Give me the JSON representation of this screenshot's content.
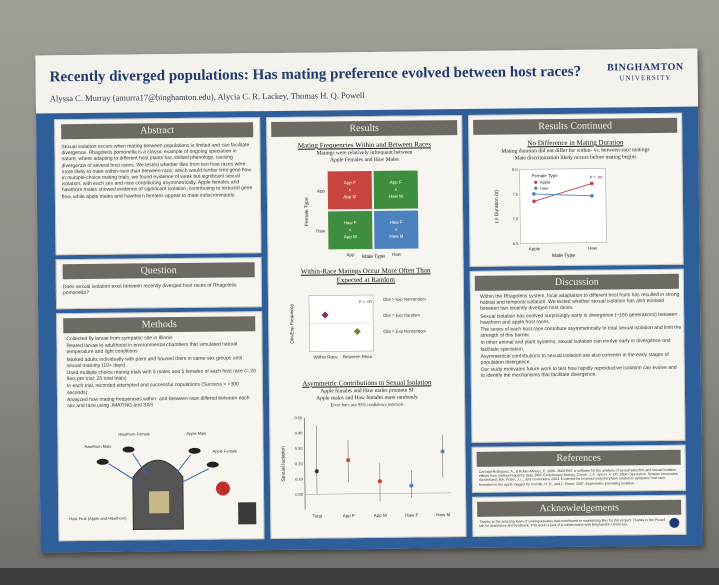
{
  "poster": {
    "title": "Recently diverged populations: Has mating preference evolved between host races?",
    "authors": "Alyssa C. Murray (amurra17@binghamton.edu), Alycia C. R. Lackey, Thomas H. Q. Powell",
    "logo_main": "BINGHAMTON",
    "logo_sub": "UNIVERSITY"
  },
  "sections": {
    "abstract": {
      "heading": "Abstract",
      "text": "Sexual isolation occurs when mating between populations is limited and can facilitate divergence. Rhagoletis pomonella is a classic example of ongoing speciation in nature, where adapting to different host plants has shifted phenology, causing divergence of several host races. We tested whether flies from two host races were more likely to mate within-race than between-race, which would further limit gene flow. In multiple-choice mating trials, we found evidence of weak but significant sexual isolation, with each sex and race contributing asymmetrically. Apple females and hawthorn males showed evidence of significant isolation, contributing to reduced gene flow, while apple males and hawthorn females appear to mate indiscriminately."
    },
    "question": {
      "heading": "Question",
      "text": "Does sexual isolation exist between recently diverged host races of Rhagoletis pomonella?"
    },
    "methods": {
      "heading": "Methods",
      "bullets": [
        "Collected fly larvae from sympatric site in Illinois",
        "Reared larvae to adulthood in environmental chambers that simulated natural temperature and light conditions",
        "Marked adults individually with paint and housed them in same-sex groups until sexual maturity (10+ days)",
        "Used multiple choice mating trials with 5 males and 5 females of each host race (= 20 flies per trial; 25 total trials)",
        "In each trial, recorded attempted and successful copulations (Success = >300 seconds)",
        "Analyzed how mating frequencies within- and between-race differed between each sex and race using JMATING and SAS"
      ],
      "figure_labels": {
        "hawthorn_male": "Hawthorn Male",
        "hawthorn_female": "Hawthorn Female",
        "apple_male": "Apple Male",
        "apple_female": "Apple Female",
        "host_fruit": "Host Fruit (Apple and Hawthorn)"
      }
    },
    "results": {
      "heading": "Results",
      "fig1": {
        "title": "Mating Frequencies Within and Between Races",
        "caption1": "Matings were relatively infrequent between",
        "caption2": "Apple Females and Haw Males",
        "ylabel": "Female Type",
        "xlabel": "Male Type",
        "row_labels": [
          "App",
          "Haw"
        ],
        "col_labels": [
          "App",
          "Haw"
        ],
        "cells": [
          {
            "line1": "App F",
            "line2": "x",
            "line3": "App M",
            "color": "#c8453f"
          },
          {
            "line1": "App F",
            "line2": "x",
            "line3": "Haw M",
            "color": "#3f8d3e"
          },
          {
            "line1": "Haw F",
            "line2": "x",
            "line3": "App M",
            "color": "#3f8d3e"
          },
          {
            "line1": "Haw F",
            "line2": "x",
            "line3": "Haw M",
            "color": "#4d82c0"
          }
        ]
      },
      "fig2": {
        "title": "Within-Race Matings Occur More Often Than",
        "title2": "Expected at Random",
        "ylabel": "Obs/Exp Frequency",
        "stats": "P = .00",
        "legend": [
          "Obs > Exp Nonrandom",
          "Obs = Exp Random",
          "Obs < Exp Nonrandom"
        ],
        "x_labels": [
          "Within Race",
          "Between Race"
        ]
      },
      "fig3": {
        "title": "Asymmetric Contributions to Sexual Isolation",
        "caption1": "Apple females and Haw males promote SI",
        "caption2": "Apple males and Haw females mate randomly",
        "caption3": "Error bars are 95% confidence intervals",
        "ylabel": "Sexual Isolation",
        "x_labels": [
          "Total",
          "App F",
          "App M",
          "Haw F",
          "Haw M"
        ]
      }
    },
    "results_cont": {
      "heading": "Results Continued",
      "sub_title": "No Difference in Mating Duration",
      "caption1": "Mating duration did not differ for within- vs. between-race matings",
      "caption2": "Mate discrimination likely occurs before mating begins",
      "ylabel": "Ln Duration (s)",
      "xlabel": "Male Type",
      "legend_title": "Female Type",
      "legend": [
        "Apple",
        "Haw"
      ],
      "x_labels": [
        "Apple",
        "Haw"
      ],
      "stats": "P = .00"
    },
    "discussion": {
      "heading": "Discussion",
      "bullets": [
        "Within the Rhagoletis system, local adaptation to different host fruits has resulted in strong habitat and temporal isolation. We tested whether sexual isolation has also evolved between two recently diverged host races.",
        "Sexual isolation has evolved surprisingly early in divergence (~160 generations) between hawthorn and apple host races.",
        "The sexes of each host race contribute asymmetrically to total sexual isolation and limit the strength of this barrier.",
        "In other animal and plant systems, sexual isolation can evolve early in divergence and facilitate speciation.",
        "Asymmetrical contributions to sexual isolation are also common in the early stages of population divergence.",
        "Our study motivates future work to test how rapidly reproductive isolation can evolve and to identify the mechanisms that facilitate divergence."
      ]
    },
    "references": {
      "heading": "References",
      "text": "Carvajal-Rodriguez, A., & Rolan-Alvarez, E. 2006. JMATING: a software for the analysis of sexual selection and sexual isolation effects from mating frequency data. BMC Evolutionary Biology. Coyne, J. A., and H. A. Orr. 2004. Speciation. Sinauer Associates, Sunderland, MA. Feder, J. L., and co-workers. 2003. Evidence for inversion polymorphism related to sympatric host race formation in the apple maggot fly. Rundle, H. D., and L. Rowe. 2007. Asymmetric premating isolation."
    },
    "acknowledgements": {
      "heading": "Acknowledgements",
      "text": "Thanks to the amazing team of undergraduates that contributed to maintaining flies for this project. Thanks to the Powell lab for assistance and feedback. This work is part of a collaboration with Binghamton University."
    }
  },
  "chart_data": [
    {
      "type": "line",
      "title": "No Difference in Mating Duration",
      "xlabel": "Male Type",
      "ylabel": "Ln Duration (s)",
      "categories": [
        "Apple",
        "Haw"
      ],
      "ylim": [
        6.5,
        8.0
      ],
      "series": [
        {
          "name": "Apple",
          "values": [
            7.35,
            7.7
          ],
          "color": "#c8453f"
        },
        {
          "name": "Haw",
          "values": [
            7.5,
            7.45
          ],
          "color": "#4d82c0"
        }
      ]
    },
    {
      "type": "scatter",
      "title": "Within-Race Matings Occur More Often Than Expected at Random",
      "ylabel": "Obs/Exp Frequency",
      "categories": [
        "Within Race",
        "Between Race"
      ],
      "ylim": [
        0.5,
        1.5
      ],
      "values": [
        1.15,
        0.85
      ],
      "colors": [
        "#8a2c5a",
        "#6e8a2c"
      ]
    },
    {
      "type": "scatter",
      "title": "Asymmetric Contributions to Sexual Isolation",
      "ylabel": "Sexual Isolation",
      "categories": [
        "Total",
        "App F",
        "App M",
        "Haw F",
        "Haw M"
      ],
      "ylim": [
        -0.1,
        0.5
      ],
      "yticks": [
        0.0,
        0.1,
        0.2,
        0.3,
        0.4,
        0.5
      ],
      "values": [
        0.15,
        0.22,
        0.08,
        0.05,
        0.27
      ],
      "err_low": [
        0.0,
        0.08,
        -0.05,
        -0.03,
        0.1
      ],
      "err_high": [
        0.45,
        0.35,
        0.2,
        0.15,
        0.38
      ],
      "colors": [
        "#333333",
        "#c8453f",
        "#c8453f",
        "#4d82c0",
        "#4d82c0"
      ]
    }
  ]
}
